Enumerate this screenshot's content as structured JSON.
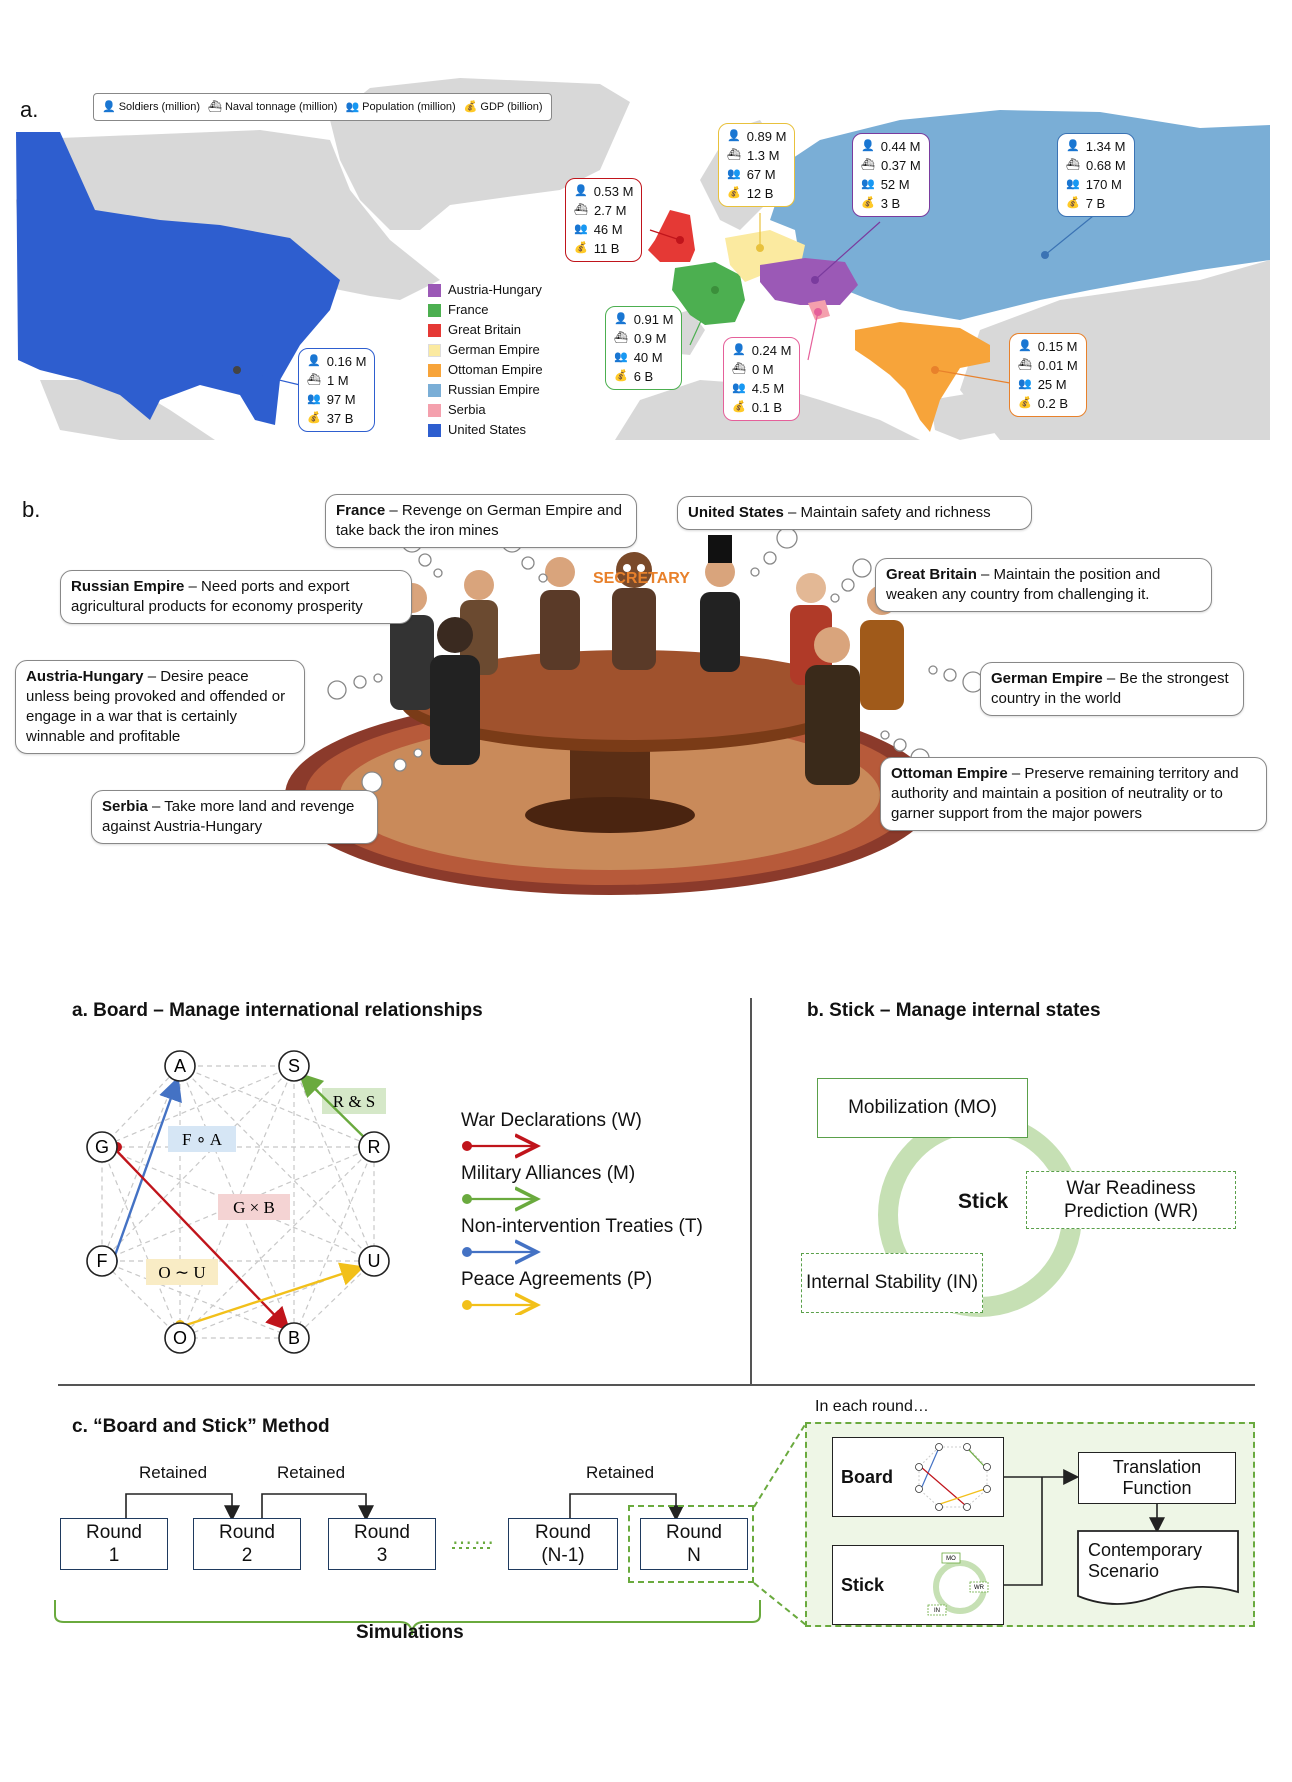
{
  "colors": {
    "austria_hungary": "#9b59b6",
    "france": "#4caf50",
    "great_britain": "#e53935",
    "german_empire": "#fbeaa0",
    "ottoman_empire": "#f7a43a",
    "russian_empire": "#7aaed6",
    "serbia": "#f4a0ad",
    "united_states": "#2e5ecf",
    "land": "#d8d8d8",
    "war": "#c0141b",
    "alliance": "#6aaa3e",
    "treaty": "#4472c4",
    "peace": "#f2c01a",
    "secretary": "#e8812b"
  },
  "panel_map": {
    "letter": "a.",
    "legend": {
      "soldiers": "Soldiers (million)",
      "naval": "Naval tonnage (million)",
      "population": "Population (million)",
      "gdp": "GDP (billion)"
    },
    "countries": [
      {
        "name": "Austria-Hungary",
        "color": "#9b59b6"
      },
      {
        "name": "France",
        "color": "#4caf50"
      },
      {
        "name": "Great Britain",
        "color": "#e53935"
      },
      {
        "name": "German Empire",
        "color": "#fbeaa0"
      },
      {
        "name": "Ottoman Empire",
        "color": "#f7a43a"
      },
      {
        "name": "Russian Empire",
        "color": "#7aaed6"
      },
      {
        "name": "Serbia",
        "color": "#f4a0ad"
      },
      {
        "name": "United States",
        "color": "#2e5ecf"
      }
    ],
    "stats": {
      "great_britain": [
        "0.53 M",
        "2.7 M",
        "46 M",
        "11 B"
      ],
      "german_empire": [
        "0.89 M",
        "1.3 M",
        "67 M",
        "12 B"
      ],
      "austria_hungary": [
        "0.44 M",
        "0.37 M",
        "52 M",
        "3 B"
      ],
      "russian_empire": [
        "1.34 M",
        "0.68 M",
        "170 M",
        "7 B"
      ],
      "france": [
        "0.91 M",
        "0.9 M",
        "40 M",
        "6 B"
      ],
      "serbia": [
        "0.24 M",
        "0 M",
        "4.5 M",
        "0.1 B"
      ],
      "ottoman_empire": [
        "0.15 M",
        "0.01 M",
        "25 M",
        "0.2 B"
      ],
      "united_states": [
        "0.16 M",
        "1 M",
        "97 M",
        "37 B"
      ]
    }
  },
  "panel_table": {
    "letter": "b.",
    "secretary": "SECRETARY",
    "bubbles": {
      "france": {
        "country": "France",
        "text": " – Revenge on German Empire and take back the iron mines"
      },
      "united_states": {
        "country": "United States",
        "text": " – Maintain safety and richness"
      },
      "russian_empire": {
        "country": "Russian Empire",
        "text": " – Need ports and export agricultural products for economy prosperity"
      },
      "great_britain": {
        "country": "Great Britain",
        "text": " – Maintain the position and weaken any country from challenging it."
      },
      "austria_hungary": {
        "country": "Austria-Hungary",
        "text": " – Desire peace unless being provoked and offended or engage in a war that is certainly winnable and profitable"
      },
      "german_empire": {
        "country": "German Empire",
        "text": " – Be the strongest country in the world"
      },
      "serbia": {
        "country": "Serbia",
        "text": " – Take more land and revenge against Austria-Hungary"
      },
      "ottoman_empire": {
        "country": "Ottoman Empire",
        "text": " – Preserve remaining territory and authority  and maintain a position of neutrality or to garner support from the major powers"
      }
    }
  },
  "board": {
    "title": "a. Board – Manage international relationships",
    "nodes": [
      "A",
      "S",
      "G",
      "R",
      "F",
      "U",
      "O",
      "B"
    ],
    "labels": {
      "rs": "R & S",
      "fa": "F ∘ A",
      "gb": "G × B",
      "ou": "O ∼ U"
    },
    "legend": {
      "war": "War Declarations (W)",
      "alliance": "Military Alliances (M)",
      "treaty": "Non-intervention Treaties (T)",
      "peace": "Peace Agreements (P)"
    }
  },
  "stick": {
    "title": "b. Stick – Manage internal states",
    "center": "Stick",
    "mobilization": "Mobilization (MO)",
    "war_readiness": "War Readiness Prediction (WR)",
    "internal_stability": "Internal Stability (IN)"
  },
  "method": {
    "title": "c. “Board and Stick” Method",
    "rounds": [
      "Round 1",
      "Round 2",
      "Round 3",
      "Round (N-1)",
      "Round N"
    ],
    "retained": "Retained",
    "simulations": "Simulations",
    "in_each_round": "In each round…",
    "board": "Board",
    "stick": "Stick",
    "translation": "Translation Function",
    "scenario": "Contemporary Scenario",
    "mini": {
      "mo": "MO",
      "wr": "WR",
      "in": "IN"
    }
  }
}
